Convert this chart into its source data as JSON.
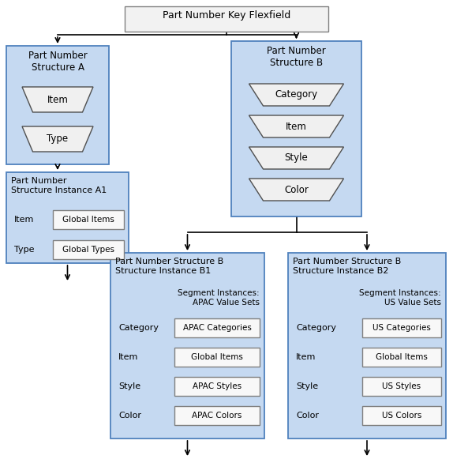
{
  "bg_color": "#ffffff",
  "box_fill_light": "#dce6f4",
  "box_fill_mid": "#c5d9f1",
  "box_border": "#4f81bd",
  "seg_box_fill": "#f2f2f2",
  "seg_box_border": "#808080",
  "line_color": "#000000",
  "title": "Part Number Key Flexfield",
  "struct_A_label": "Part Number\nStructure A",
  "struct_A_segs": [
    "Item",
    "Type"
  ],
  "struct_B_label": "Part Number\nStructure B",
  "struct_B_segs": [
    "Category",
    "Item",
    "Style",
    "Color"
  ],
  "inst_A1_label": "Part Number\nStructure Instance A1",
  "inst_A1_rows": [
    [
      "Item",
      "Global Items"
    ],
    [
      "Type",
      "Global Types"
    ]
  ],
  "inst_B1_label": "Part Number Structure B\nStructure Instance B1",
  "inst_B1_subtitle": "Segment Instances:\nAPAC Value Sets",
  "inst_B1_rows": [
    [
      "Category",
      "APAC Categories"
    ],
    [
      "Item",
      "Global Items"
    ],
    [
      "Style",
      "APAC Styles"
    ],
    [
      "Color",
      "APAC Colors"
    ]
  ],
  "inst_B2_label": "Part Number Structure B\nStructure Instance B2",
  "inst_B2_subtitle": "Segment Instances:\nUS Value Sets",
  "inst_B2_rows": [
    [
      "Category",
      "US Categories"
    ],
    [
      "Item",
      "Global Items"
    ],
    [
      "Style",
      "US Styles"
    ],
    [
      "Color",
      "US Colors"
    ]
  ]
}
